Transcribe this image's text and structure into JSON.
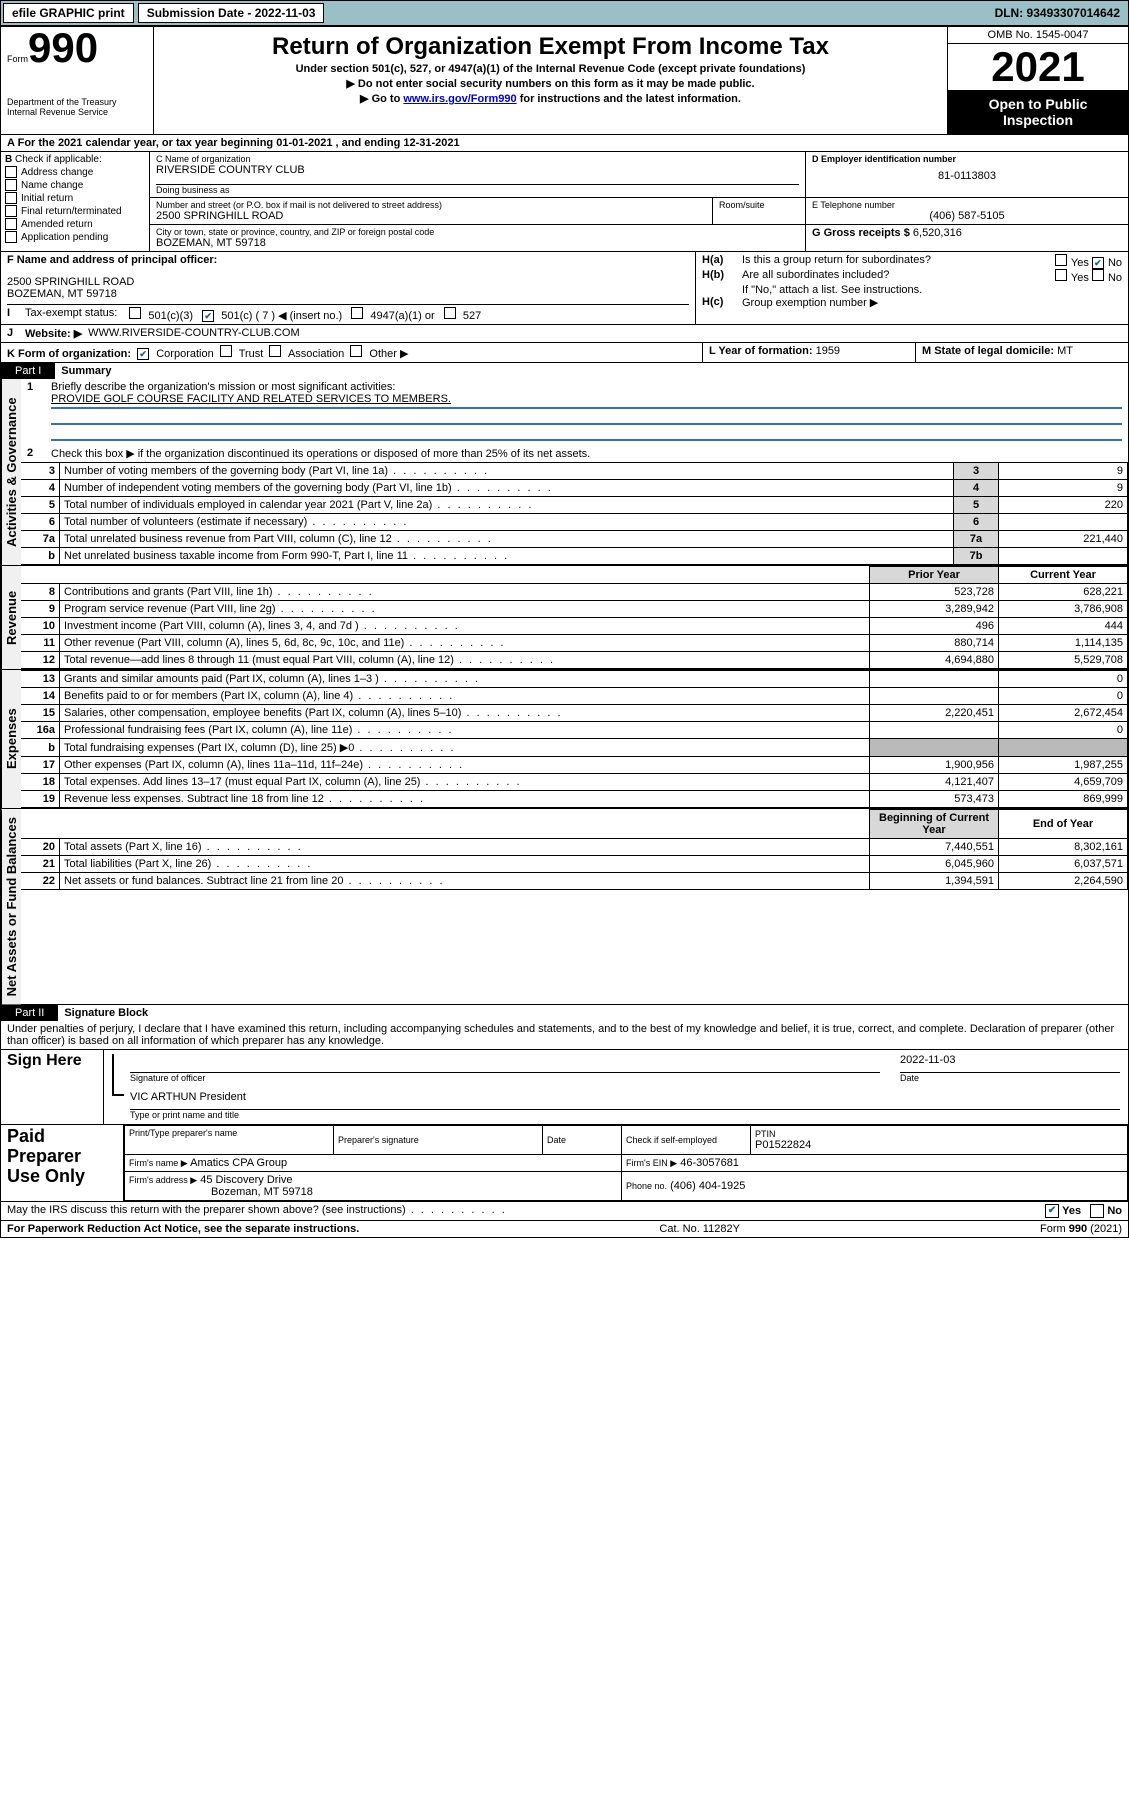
{
  "topbar": {
    "efile": "efile GRAPHIC print",
    "submission_label": "Submission Date - 2022-11-03",
    "dln": "DLN: 93493307014642"
  },
  "header": {
    "form_word": "Form",
    "form_num": "990",
    "title": "Return of Organization Exempt From Income Tax",
    "sub1": "Under section 501(c), 527, or 4947(a)(1) of the Internal Revenue Code (except private foundations)",
    "sub2": "Do not enter social security numbers on this form as it may be made public.",
    "sub3_prefix": "Go to ",
    "sub3_link": "www.irs.gov/Form990",
    "sub3_suffix": " for instructions and the latest information.",
    "dept": "Department of the Treasury",
    "irs": "Internal Revenue Service",
    "omb": "OMB No. 1545-0047",
    "year": "2021",
    "open": "Open to Public Inspection"
  },
  "A": {
    "text": "For the 2021 calendar year, or tax year beginning 01-01-2021   , and ending 12-31-2021"
  },
  "B": {
    "label": "Check if applicable:",
    "items": [
      "Address change",
      "Name change",
      "Initial return",
      "Final return/terminated",
      "Amended return",
      "Application pending"
    ]
  },
  "C": {
    "name_label": "C Name of organization",
    "name": "RIVERSIDE COUNTRY CLUB",
    "dba_label": "Doing business as",
    "dba": "",
    "addr_label": "Number and street (or P.O. box if mail is not delivered to street address)",
    "room_label": "Room/suite",
    "addr": "2500 SPRINGHILL ROAD",
    "city_label": "City or town, state or province, country, and ZIP or foreign postal code",
    "city": "BOZEMAN, MT  59718"
  },
  "D": {
    "label": "D Employer identification number",
    "val": "81-0113803"
  },
  "E": {
    "label": "E Telephone number",
    "val": "(406) 587-5105"
  },
  "G": {
    "label": "G Gross receipts $",
    "val": "6,520,316"
  },
  "F": {
    "label": "F  Name and address of principal officer:",
    "line1": "2500 SPRINGHILL ROAD",
    "line2": "BOZEMAN, MT  59718"
  },
  "H": {
    "a": "Is this a group return for subordinates?",
    "b": "Are all subordinates included?",
    "b_note": "If \"No,\" attach a list. See instructions.",
    "c": "Group exemption number ▶",
    "yes": "Yes",
    "no": "No"
  },
  "I": {
    "label": "Tax-exempt status:",
    "opts": [
      "501(c)(3)",
      "501(c) ( 7 ) ◀ (insert no.)",
      "4947(a)(1) or",
      "527"
    ]
  },
  "J": {
    "label": "Website: ▶",
    "val": "WWW.RIVERSIDE-COUNTRY-CLUB.COM"
  },
  "K": {
    "label": "K Form of organization:",
    "opts": [
      "Corporation",
      "Trust",
      "Association",
      "Other ▶"
    ]
  },
  "L": {
    "label": "L Year of formation:",
    "val": "1959"
  },
  "M": {
    "label": "M State of legal domicile:",
    "val": "MT"
  },
  "part1": {
    "tab": "Part I",
    "title": "Summary",
    "q1_label": "Briefly describe the organization's mission or most significant activities:",
    "q1_val": "PROVIDE GOLF COURSE FACILITY AND RELATED SERVICES TO MEMBERS.",
    "q2": "Check this box ▶        if the organization discontinued its operations or disposed of more than 25% of its net assets.",
    "rows_gov": [
      {
        "n": "3",
        "t": "Number of voting members of the governing body (Part VI, line 1a)",
        "b": "3",
        "v": "9"
      },
      {
        "n": "4",
        "t": "Number of independent voting members of the governing body (Part VI, line 1b)",
        "b": "4",
        "v": "9"
      },
      {
        "n": "5",
        "t": "Total number of individuals employed in calendar year 2021 (Part V, line 2a)",
        "b": "5",
        "v": "220"
      },
      {
        "n": "6",
        "t": "Total number of volunteers (estimate if necessary)",
        "b": "6",
        "v": ""
      },
      {
        "n": "7a",
        "t": "Total unrelated business revenue from Part VIII, column (C), line 12",
        "b": "7a",
        "v": "221,440"
      },
      {
        "n": "b",
        "t": "Net unrelated business taxable income from Form 990-T, Part I, line 11",
        "b": "7b",
        "v": ""
      }
    ],
    "col_prior": "Prior Year",
    "col_current": "Current Year",
    "rev": [
      {
        "n": "8",
        "t": "Contributions and grants (Part VIII, line 1h)",
        "p": "523,728",
        "c": "628,221"
      },
      {
        "n": "9",
        "t": "Program service revenue (Part VIII, line 2g)",
        "p": "3,289,942",
        "c": "3,786,908"
      },
      {
        "n": "10",
        "t": "Investment income (Part VIII, column (A), lines 3, 4, and 7d )",
        "p": "496",
        "c": "444"
      },
      {
        "n": "11",
        "t": "Other revenue (Part VIII, column (A), lines 5, 6d, 8c, 9c, 10c, and 11e)",
        "p": "880,714",
        "c": "1,114,135"
      },
      {
        "n": "12",
        "t": "Total revenue—add lines 8 through 11 (must equal Part VIII, column (A), line 12)",
        "p": "4,694,880",
        "c": "5,529,708"
      }
    ],
    "exp": [
      {
        "n": "13",
        "t": "Grants and similar amounts paid (Part IX, column (A), lines 1–3 )",
        "p": "",
        "c": "0"
      },
      {
        "n": "14",
        "t": "Benefits paid to or for members (Part IX, column (A), line 4)",
        "p": "",
        "c": "0"
      },
      {
        "n": "15",
        "t": "Salaries, other compensation, employee benefits (Part IX, column (A), lines 5–10)",
        "p": "2,220,451",
        "c": "2,672,454"
      },
      {
        "n": "16a",
        "t": "Professional fundraising fees (Part IX, column (A), line 11e)",
        "p": "",
        "c": "0"
      },
      {
        "n": "b",
        "t": "Total fundraising expenses (Part IX, column (D), line 25) ▶0",
        "p": "shade",
        "c": "shade"
      },
      {
        "n": "17",
        "t": "Other expenses (Part IX, column (A), lines 11a–11d, 11f–24e)",
        "p": "1,900,956",
        "c": "1,987,255"
      },
      {
        "n": "18",
        "t": "Total expenses. Add lines 13–17 (must equal Part IX, column (A), line 25)",
        "p": "4,121,407",
        "c": "4,659,709"
      },
      {
        "n": "19",
        "t": "Revenue less expenses. Subtract line 18 from line 12",
        "p": "573,473",
        "c": "869,999"
      }
    ],
    "col_begin": "Beginning of Current Year",
    "col_end": "End of Year",
    "net": [
      {
        "n": "20",
        "t": "Total assets (Part X, line 16)",
        "p": "7,440,551",
        "c": "8,302,161"
      },
      {
        "n": "21",
        "t": "Total liabilities (Part X, line 26)",
        "p": "6,045,960",
        "c": "6,037,571"
      },
      {
        "n": "22",
        "t": "Net assets or fund balances. Subtract line 21 from line 20",
        "p": "1,394,591",
        "c": "2,264,590"
      }
    ],
    "side_gov": "Activities & Governance",
    "side_rev": "Revenue",
    "side_exp": "Expenses",
    "side_net": "Net Assets or Fund Balances"
  },
  "part2": {
    "tab": "Part II",
    "title": "Signature Block",
    "decl": "Under penalties of perjury, I declare that I have examined this return, including accompanying schedules and statements, and to the best of my knowledge and belief, it is true, correct, and complete. Declaration of preparer (other than officer) is based on all information of which preparer has any knowledge.",
    "sign_here": "Sign Here",
    "sig_officer": "Signature of officer",
    "sig_date": "Date",
    "sig_date_val": "2022-11-03",
    "officer_name": "VIC ARTHUN  President",
    "officer_title_label": "Type or print name and title",
    "paid": "Paid Preparer Use Only",
    "col_prep_name": "Print/Type preparer's name",
    "col_prep_sig": "Preparer's signature",
    "col_date": "Date",
    "check_self": "Check        if self-employed",
    "ptin_label": "PTIN",
    "ptin": "P01522824",
    "firm_name_label": "Firm's name   ▶",
    "firm_name": "Amatics CPA Group",
    "firm_ein_label": "Firm's EIN ▶",
    "firm_ein": "46-3057681",
    "firm_addr_label": "Firm's address ▶",
    "firm_addr1": "45 Discovery Drive",
    "firm_addr2": "Bozeman, MT  59718",
    "phone_label": "Phone no.",
    "phone": "(406) 404-1925",
    "discuss": "May the IRS discuss this return with the preparer shown above? (see instructions)",
    "yes": "Yes",
    "no": "No"
  },
  "footer": {
    "left": "For Paperwork Reduction Act Notice, see the separate instructions.",
    "mid": "Cat. No. 11282Y",
    "right": "Form 990 (2021)"
  }
}
